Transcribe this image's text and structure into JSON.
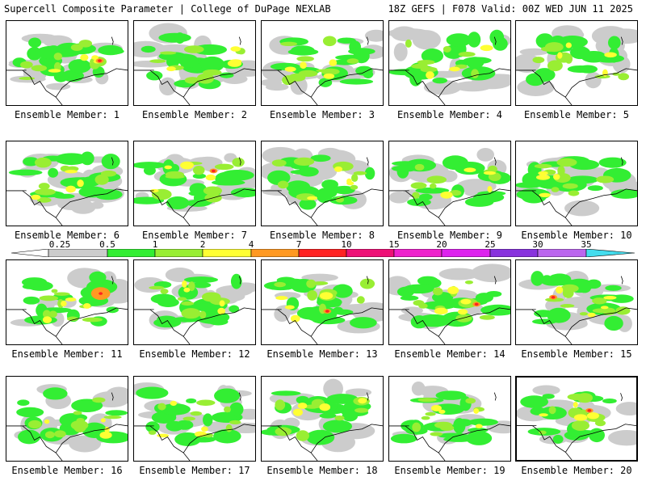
{
  "header": {
    "left": "Supercell Composite Parameter | College of DuPage NEXLAB",
    "right": "18Z GEFS | F078 Valid: 00Z WED JUN 11 2025"
  },
  "panel_label_prefix": "Ensemble Member: ",
  "members": [
    1,
    2,
    3,
    4,
    5,
    6,
    7,
    8,
    9,
    10,
    11,
    12,
    13,
    14,
    15,
    16,
    17,
    18,
    19,
    20
  ],
  "highlighted_member": 20,
  "colorbar": {
    "levels": [
      "0.25",
      "0.5",
      "1",
      "2",
      "4",
      "7",
      "10",
      "15",
      "20",
      "25",
      "30",
      "35"
    ],
    "colors": [
      "#cccccc",
      "#33ee33",
      "#99ee33",
      "#ffff33",
      "#ff9922",
      "#ff2222",
      "#ee1177",
      "#ee22cc",
      "#dd22ee",
      "#8833dd",
      "#bb66ee",
      "#44ddee"
    ]
  }
}
